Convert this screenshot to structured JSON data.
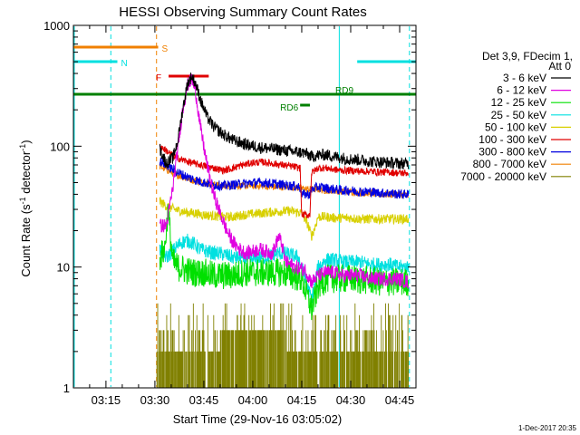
{
  "chart_data": {
    "type": "line",
    "title": "HESSI Observing Summary Count Rates",
    "xlabel": "Start Time (29-Nov-16 03:05:02)",
    "ylabel_parts": [
      "Count Rate (s",
      "-1",
      " detector",
      "-1",
      ")"
    ],
    "ylog": true,
    "ylim": [
      1,
      1000
    ],
    "xlim_minutes": [
      185.03,
      290.0
    ],
    "x_ticks": [
      {
        "label": "03:15",
        "minutes": 195
      },
      {
        "label": "03:30",
        "minutes": 210
      },
      {
        "label": "03:45",
        "minutes": 225
      },
      {
        "label": "04:00",
        "minutes": 240
      },
      {
        "label": "04:15",
        "minutes": 255
      },
      {
        "label": "04:30",
        "minutes": 270
      },
      {
        "label": "04:45",
        "minutes": 285
      }
    ],
    "y_ticks": [
      {
        "label": "1",
        "value": 1
      },
      {
        "label": "10",
        "value": 10
      },
      {
        "label": "100",
        "value": 100
      },
      {
        "label": "1000",
        "value": 1000
      }
    ],
    "legend": {
      "header": [
        "Det 3,9, FDecim 1,",
        "Att 0"
      ],
      "entries": [
        {
          "label": "3 - 6 keV",
          "color": "#000000"
        },
        {
          "label": "6 - 12 keV",
          "color": "#e000e0"
        },
        {
          "label": "12 - 25 keV",
          "color": "#00e000"
        },
        {
          "label": "25 - 50 keV",
          "color": "#00e0e0"
        },
        {
          "label": "50 - 100 keV",
          "color": "#d8d000"
        },
        {
          "label": "100 - 300 keV",
          "color": "#e00000"
        },
        {
          "label": "300 - 800 keV",
          "color": "#0000e0"
        },
        {
          "label": "800 - 7000 keV",
          "color": "#f08000"
        },
        {
          "label": "7000 - 20000 keV",
          "color": "#808000"
        }
      ]
    },
    "flags": [
      {
        "label": "S",
        "color": "#f08000",
        "level": 0.94,
        "segments": [
          [
            185.03,
            211.0
          ]
        ]
      },
      {
        "label": "N",
        "color": "#00e0e0",
        "level": 0.9,
        "segments": [
          [
            185.03,
            198.5
          ],
          [
            272.0,
            290.0
          ]
        ]
      },
      {
        "label": "F",
        "color": "#e00000",
        "level": 0.86,
        "segments": [
          [
            214.2,
            226.5
          ]
        ]
      },
      {
        "label": "RD9",
        "color": "#008000",
        "level": 0.81,
        "segments": [
          [
            185.03,
            290.0
          ]
        ]
      },
      {
        "label": "RD6",
        "color": "#008000",
        "level": 0.78,
        "segments": [
          [
            254.5,
            257.5
          ]
        ]
      }
    ],
    "vlines": [
      {
        "minutes": 185.3,
        "color": "#00e0e0",
        "style": "solid"
      },
      {
        "minutes": 196.5,
        "color": "#00e0e0",
        "style": "dashed"
      },
      {
        "minutes": 210.5,
        "color": "#f08000",
        "style": "dashed"
      },
      {
        "minutes": 266.5,
        "color": "#00e0e0",
        "style": "solid"
      },
      {
        "minutes": 288.0,
        "color": "#00e0e0",
        "style": "dashed"
      }
    ],
    "series": [
      {
        "name": "3 - 6 keV",
        "color": "#000000",
        "noise": 0.05,
        "points": [
          [
            211.5,
            95
          ],
          [
            213.5,
            72
          ],
          [
            215.5,
            80
          ],
          [
            217.0,
            110
          ],
          [
            218.5,
            200
          ],
          [
            220.0,
            330
          ],
          [
            221.3,
            380
          ],
          [
            222.5,
            330
          ],
          [
            224.0,
            240
          ],
          [
            226.0,
            175
          ],
          [
            228.0,
            145
          ],
          [
            231.0,
            125
          ],
          [
            234.0,
            112
          ],
          [
            238.0,
            103
          ],
          [
            242.0,
            98
          ],
          [
            246.0,
            95
          ],
          [
            250.0,
            92
          ],
          [
            253.0,
            90
          ],
          [
            256.0,
            88
          ],
          [
            258.0,
            82
          ],
          [
            260.0,
            84
          ],
          [
            262.5,
            85
          ],
          [
            265.0,
            82
          ],
          [
            267.5,
            80
          ],
          [
            270.0,
            78
          ],
          [
            273.0,
            77
          ],
          [
            276.0,
            75
          ],
          [
            279.0,
            74
          ],
          [
            282.0,
            73
          ],
          [
            284.5,
            72
          ],
          [
            287.8,
            72
          ]
        ]
      },
      {
        "name": "6 - 12 keV",
        "color": "#e000e0",
        "noise": 0.06,
        "points": [
          [
            211.5,
            22
          ],
          [
            213.5,
            22
          ],
          [
            215.5,
            45
          ],
          [
            217.0,
            95
          ],
          [
            218.5,
            200
          ],
          [
            220.0,
            320
          ],
          [
            221.3,
            360
          ],
          [
            222.5,
            280
          ],
          [
            224.0,
            140
          ],
          [
            226.0,
            70
          ],
          [
            228.0,
            40
          ],
          [
            230.0,
            28
          ],
          [
            232.0,
            20
          ],
          [
            234.0,
            16
          ],
          [
            236.0,
            14
          ],
          [
            238.0,
            13
          ],
          [
            240.0,
            13.5
          ],
          [
            242.0,
            14
          ],
          [
            244.0,
            13.5
          ],
          [
            246.0,
            13
          ],
          [
            248.0,
            18
          ],
          [
            249.0,
            15
          ],
          [
            250.0,
            11
          ],
          [
            253.0,
            10
          ],
          [
            256.0,
            9.5
          ],
          [
            258.0,
            7.5
          ],
          [
            260.0,
            8.5
          ],
          [
            262.5,
            9
          ],
          [
            265.0,
            9
          ],
          [
            267.5,
            8.5
          ],
          [
            270.0,
            8.5
          ],
          [
            273.0,
            8.5
          ],
          [
            276.0,
            8
          ],
          [
            279.0,
            8
          ],
          [
            282.0,
            8
          ],
          [
            284.5,
            8
          ],
          [
            287.8,
            7.5
          ]
        ]
      },
      {
        "name": "12 - 25 keV",
        "color": "#00e000",
        "noise": 0.12,
        "points": [
          [
            211.5,
            12
          ],
          [
            213.0,
            14
          ],
          [
            214.0,
            30
          ],
          [
            215.5,
            11
          ],
          [
            217.0,
            10
          ],
          [
            219.0,
            9.5
          ],
          [
            222.0,
            9
          ],
          [
            225.0,
            9
          ],
          [
            228.0,
            8.5
          ],
          [
            231.0,
            8.5
          ],
          [
            234.0,
            8.5
          ],
          [
            237.0,
            9
          ],
          [
            240.0,
            9
          ],
          [
            243.0,
            9
          ],
          [
            246.0,
            9
          ],
          [
            249.0,
            9
          ],
          [
            252.0,
            8.5
          ],
          [
            255.0,
            8
          ],
          [
            256.5,
            6
          ],
          [
            258.0,
            4.5
          ],
          [
            259.0,
            5.5
          ],
          [
            260.0,
            7
          ],
          [
            262.5,
            8
          ],
          [
            265.0,
            8
          ],
          [
            267.5,
            8
          ],
          [
            270.0,
            8
          ],
          [
            273.0,
            7.8
          ],
          [
            276.0,
            7.8
          ],
          [
            279.0,
            7.5
          ],
          [
            282.0,
            7.5
          ],
          [
            284.5,
            7.5
          ],
          [
            287.8,
            7.5
          ]
        ]
      },
      {
        "name": "25 - 50 keV",
        "color": "#00e0e0",
        "noise": 0.06,
        "points": [
          [
            211.5,
            14
          ],
          [
            213.5,
            12
          ],
          [
            216.0,
            14
          ],
          [
            218.0,
            16
          ],
          [
            220.0,
            16.5
          ],
          [
            222.0,
            15.5
          ],
          [
            224.0,
            14
          ],
          [
            226.0,
            13.5
          ],
          [
            228.0,
            13
          ],
          [
            230.0,
            13
          ],
          [
            232.0,
            12.5
          ],
          [
            234.0,
            12
          ],
          [
            236.0,
            12
          ],
          [
            238.0,
            11.5
          ],
          [
            240.0,
            11.5
          ],
          [
            242.0,
            12
          ],
          [
            244.0,
            12
          ],
          [
            246.0,
            12.5
          ],
          [
            248.0,
            13
          ],
          [
            250.0,
            13
          ],
          [
            252.0,
            12.5
          ],
          [
            254.0,
            12
          ],
          [
            255.5,
            9
          ],
          [
            257.0,
            6.5
          ],
          [
            258.0,
            5.5
          ],
          [
            259.0,
            7
          ],
          [
            260.0,
            10
          ],
          [
            262.5,
            11.5
          ],
          [
            265.0,
            11.5
          ],
          [
            267.5,
            11
          ],
          [
            270.0,
            11
          ],
          [
            273.0,
            11
          ],
          [
            276.0,
            10.5
          ],
          [
            279.0,
            10.5
          ],
          [
            282.0,
            10.5
          ],
          [
            284.5,
            10
          ],
          [
            287.8,
            10
          ]
        ]
      },
      {
        "name": "50 - 100 keV",
        "color": "#d8d000",
        "noise": 0.04,
        "points": [
          [
            211.5,
            35
          ],
          [
            213.5,
            32
          ],
          [
            216.0,
            30
          ],
          [
            219.0,
            28.5
          ],
          [
            222.0,
            28
          ],
          [
            225.0,
            27
          ],
          [
            228.0,
            26.5
          ],
          [
            231.0,
            26
          ],
          [
            234.0,
            26
          ],
          [
            237.0,
            27
          ],
          [
            240.0,
            27.5
          ],
          [
            243.0,
            28
          ],
          [
            246.0,
            28.5
          ],
          [
            249.0,
            29
          ],
          [
            252.0,
            29
          ],
          [
            255.0,
            28
          ],
          [
            257.0,
            22
          ],
          [
            258.0,
            18
          ],
          [
            259.0,
            21
          ],
          [
            260.0,
            26
          ],
          [
            262.5,
            26
          ],
          [
            265.0,
            25.5
          ],
          [
            267.5,
            25.5
          ],
          [
            270.0,
            25.5
          ],
          [
            273.0,
            25
          ],
          [
            276.0,
            25
          ],
          [
            279.0,
            25
          ],
          [
            282.0,
            25
          ],
          [
            284.5,
            25
          ],
          [
            287.8,
            25
          ]
        ]
      },
      {
        "name": "100 - 300 keV",
        "color": "#e00000",
        "noise": 0.03,
        "points": [
          [
            211.5,
            100
          ],
          [
            213.5,
            92
          ],
          [
            216.0,
            82
          ],
          [
            219.0,
            76
          ],
          [
            222.0,
            72
          ],
          [
            225.0,
            69
          ],
          [
            228.0,
            66
          ],
          [
            231.0,
            63
          ],
          [
            234.0,
            66
          ],
          [
            237.0,
            70
          ],
          [
            240.0,
            73
          ],
          [
            243.0,
            74
          ],
          [
            246.0,
            72
          ],
          [
            249.0,
            70
          ],
          [
            252.0,
            68
          ],
          [
            254.5,
            66
          ],
          [
            255.0,
            27
          ],
          [
            257.5,
            27
          ],
          [
            258.0,
            60
          ],
          [
            260.0,
            66
          ],
          [
            262.5,
            66
          ],
          [
            265.0,
            64
          ],
          [
            267.5,
            63
          ],
          [
            270.0,
            63
          ],
          [
            273.0,
            62
          ],
          [
            276.0,
            62
          ],
          [
            279.0,
            61
          ],
          [
            282.0,
            61
          ],
          [
            284.5,
            60
          ],
          [
            287.8,
            60
          ]
        ]
      },
      {
        "name": "300 - 800 keV",
        "color": "#0000e0",
        "noise": 0.04,
        "points": [
          [
            211.5,
            75
          ],
          [
            213.5,
            70
          ],
          [
            216.0,
            63
          ],
          [
            219.0,
            57
          ],
          [
            222.0,
            53
          ],
          [
            225.0,
            50
          ],
          [
            228.0,
            48
          ],
          [
            231.0,
            47
          ],
          [
            234.0,
            48
          ],
          [
            237.0,
            49
          ],
          [
            240.0,
            50
          ],
          [
            243.0,
            50
          ],
          [
            246.0,
            49
          ],
          [
            249.0,
            48
          ],
          [
            252.0,
            47
          ],
          [
            254.5,
            46
          ],
          [
            255.0,
            40
          ],
          [
            257.5,
            40
          ],
          [
            258.0,
            44
          ],
          [
            260.0,
            46
          ],
          [
            262.5,
            45
          ],
          [
            265.0,
            44
          ],
          [
            267.5,
            43
          ],
          [
            270.0,
            43
          ],
          [
            273.0,
            42
          ],
          [
            276.0,
            42
          ],
          [
            279.0,
            41
          ],
          [
            282.0,
            41
          ],
          [
            284.5,
            40
          ],
          [
            287.8,
            40
          ]
        ]
      },
      {
        "name": "800 - 7000 keV",
        "color": "#f08000",
        "noise": 0.03,
        "points": [
          [
            211.5,
            68
          ],
          [
            213.5,
            64
          ],
          [
            216.0,
            59
          ],
          [
            219.0,
            55
          ],
          [
            222.0,
            52
          ],
          [
            225.0,
            50
          ],
          [
            228.0,
            48
          ],
          [
            231.0,
            47
          ],
          [
            234.0,
            47
          ],
          [
            237.0,
            47
          ],
          [
            240.0,
            47
          ],
          [
            243.0,
            47
          ],
          [
            246.0,
            46
          ],
          [
            249.0,
            46
          ],
          [
            252.0,
            46
          ],
          [
            254.5,
            45
          ],
          [
            257.0,
            44
          ],
          [
            260.0,
            44
          ],
          [
            262.5,
            43
          ],
          [
            265.0,
            43
          ],
          [
            267.5,
            42
          ],
          [
            270.0,
            42
          ],
          [
            273.0,
            41
          ],
          [
            276.0,
            41
          ],
          [
            279.0,
            40
          ],
          [
            282.0,
            40
          ],
          [
            284.5,
            40
          ],
          [
            287.8,
            39
          ]
        ]
      }
    ],
    "counts_series": {
      "name": "7000 - 20000 keV",
      "color": "#808000",
      "start": 210.5,
      "end": 287.8,
      "levels": [
        1,
        2,
        3,
        4,
        5
      ]
    },
    "timestamp": "1-Dec-2017 20:35"
  }
}
